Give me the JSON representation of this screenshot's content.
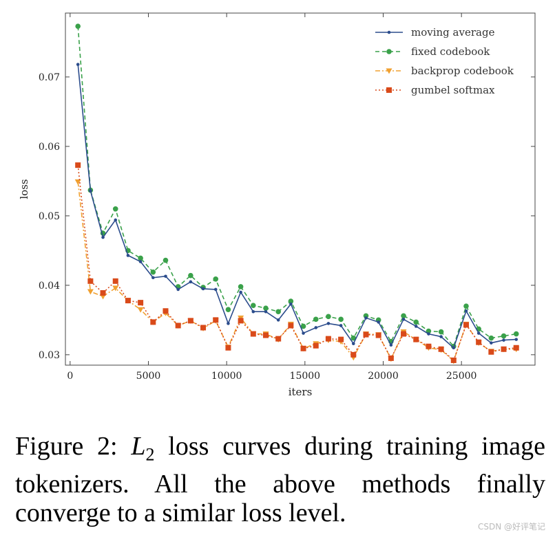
{
  "chart_data": {
    "type": "line",
    "xlabel": "iters",
    "ylabel": "loss",
    "xlim": [
      -300,
      29700
    ],
    "ylim": [
      0.0285,
      0.0792
    ],
    "xticks": [
      0,
      5000,
      10000,
      15000,
      20000,
      25000
    ],
    "xtick_labels": [
      "0",
      "5000",
      "10000",
      "15000",
      "20000",
      "25000"
    ],
    "yticks": [
      0.03,
      0.04,
      0.05,
      0.06,
      0.07
    ],
    "ytick_labels": [
      "0.03",
      "0.04",
      "0.05",
      "0.06",
      "0.07"
    ],
    "grid": false,
    "legend_position": "top-right",
    "x": [
      500,
      1300,
      2100,
      2900,
      3700,
      4500,
      5300,
      6100,
      6900,
      7700,
      8500,
      9300,
      10100,
      10900,
      11700,
      12500,
      13300,
      14100,
      14900,
      15700,
      16500,
      17300,
      18100,
      18900,
      19700,
      20500,
      21300,
      22100,
      22900,
      23700,
      24500,
      25300,
      26100,
      26900,
      27700,
      28500
    ],
    "series": [
      {
        "name": "moving average",
        "color": "#2b4c8c",
        "style": "solid",
        "marker": "dot",
        "values": [
          0.0718,
          0.0536,
          0.0469,
          0.0494,
          0.0443,
          0.0434,
          0.0411,
          0.0413,
          0.0394,
          0.0405,
          0.0395,
          0.0394,
          0.0345,
          0.039,
          0.0362,
          0.0362,
          0.035,
          0.0373,
          0.0331,
          0.0339,
          0.0345,
          0.0342,
          0.0316,
          0.0353,
          0.0347,
          0.0314,
          0.0351,
          0.0341,
          0.033,
          0.0326,
          0.031,
          0.0363,
          0.0331,
          0.0317,
          0.0321,
          0.0322
        ]
      },
      {
        "name": "fixed codebook",
        "color": "#3aa14a",
        "style": "dashed",
        "marker": "circle",
        "values": [
          0.0773,
          0.0537,
          0.0475,
          0.051,
          0.045,
          0.0439,
          0.0419,
          0.0436,
          0.0398,
          0.0414,
          0.0397,
          0.0409,
          0.0365,
          0.0398,
          0.0371,
          0.0367,
          0.0362,
          0.0377,
          0.0341,
          0.0351,
          0.0355,
          0.0351,
          0.0324,
          0.0356,
          0.035,
          0.0319,
          0.0356,
          0.0347,
          0.0334,
          0.0333,
          0.0312,
          0.037,
          0.0337,
          0.0324,
          0.0327,
          0.033
        ]
      },
      {
        "name": "backprop codebook",
        "color": "#f0a030",
        "style": "dashdot",
        "marker": "triangle-down",
        "values": [
          0.0549,
          0.0391,
          0.0384,
          0.0396,
          0.0378,
          0.0365,
          0.0347,
          0.036,
          0.0342,
          0.0349,
          0.0338,
          0.0349,
          0.0311,
          0.0353,
          0.033,
          0.033,
          0.0322,
          0.0344,
          0.0309,
          0.0316,
          0.0321,
          0.0319,
          0.0296,
          0.033,
          0.0329,
          0.0294,
          0.0333,
          0.0322,
          0.031,
          0.0307,
          0.0291,
          0.0344,
          0.0317,
          0.0305,
          0.0308,
          0.0308
        ]
      },
      {
        "name": "gumbel softmax",
        "color": "#d94a1a",
        "style": "dotted",
        "marker": "square",
        "values": [
          0.0573,
          0.0406,
          0.0389,
          0.0406,
          0.0378,
          0.0375,
          0.0347,
          0.0363,
          0.0342,
          0.0349,
          0.0339,
          0.035,
          0.031,
          0.0349,
          0.033,
          0.0328,
          0.0323,
          0.0342,
          0.0309,
          0.0313,
          0.0323,
          0.0322,
          0.03,
          0.0329,
          0.0328,
          0.0295,
          0.033,
          0.0322,
          0.0312,
          0.0308,
          0.0292,
          0.0343,
          0.0318,
          0.0304,
          0.0308,
          0.031
        ]
      }
    ]
  },
  "caption": {
    "prefix": "Figure 2: ",
    "math_main": "L",
    "math_sub": "2",
    "text": " loss curves during training image tokenizers. All the above methods finally converge to a similar loss level."
  },
  "watermark": "CSDN @好评笔记"
}
